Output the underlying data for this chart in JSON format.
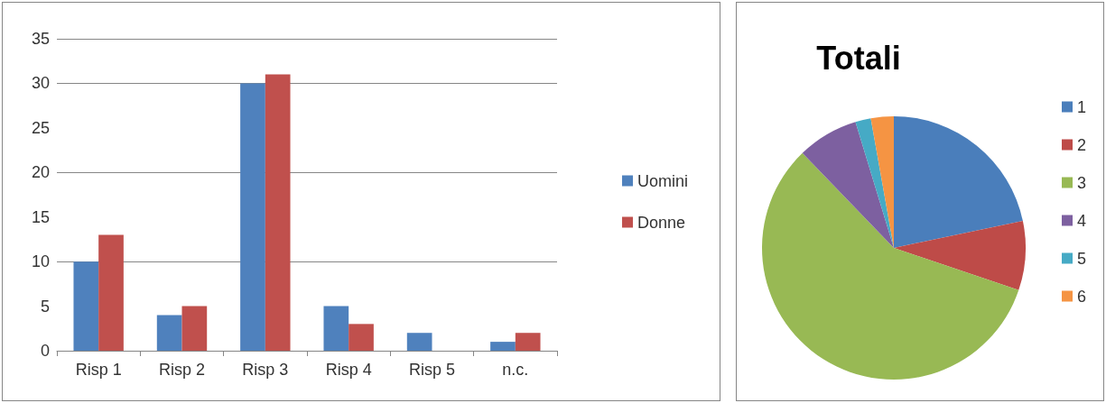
{
  "chart_data": [
    {
      "type": "bar",
      "categories": [
        "Risp 1",
        "Risp 2",
        "Risp 3",
        "Risp 4",
        "Risp 5",
        "n.c."
      ],
      "series": [
        {
          "name": "Uomini",
          "color": "#4f81bd",
          "values": [
            10,
            4,
            30,
            5,
            2,
            1
          ]
        },
        {
          "name": "Donne",
          "color": "#c0504d",
          "values": [
            13,
            5,
            31,
            3,
            0,
            2
          ]
        }
      ],
      "ylim": [
        0,
        35
      ],
      "yticks": [
        0,
        5,
        10,
        15,
        20,
        25,
        30,
        35
      ],
      "grid": "y",
      "legend": "right"
    },
    {
      "type": "pie",
      "title": "Totali",
      "categories": [
        "1",
        "2",
        "3",
        "4",
        "5",
        "6"
      ],
      "values": [
        21.7,
        8.5,
        57.6,
        7.5,
        1.9,
        2.8
      ],
      "colors": [
        "#4a7ebb",
        "#be4b48",
        "#98b954",
        "#7d60a0",
        "#46aac5",
        "#f59443"
      ],
      "legend": "right"
    }
  ]
}
